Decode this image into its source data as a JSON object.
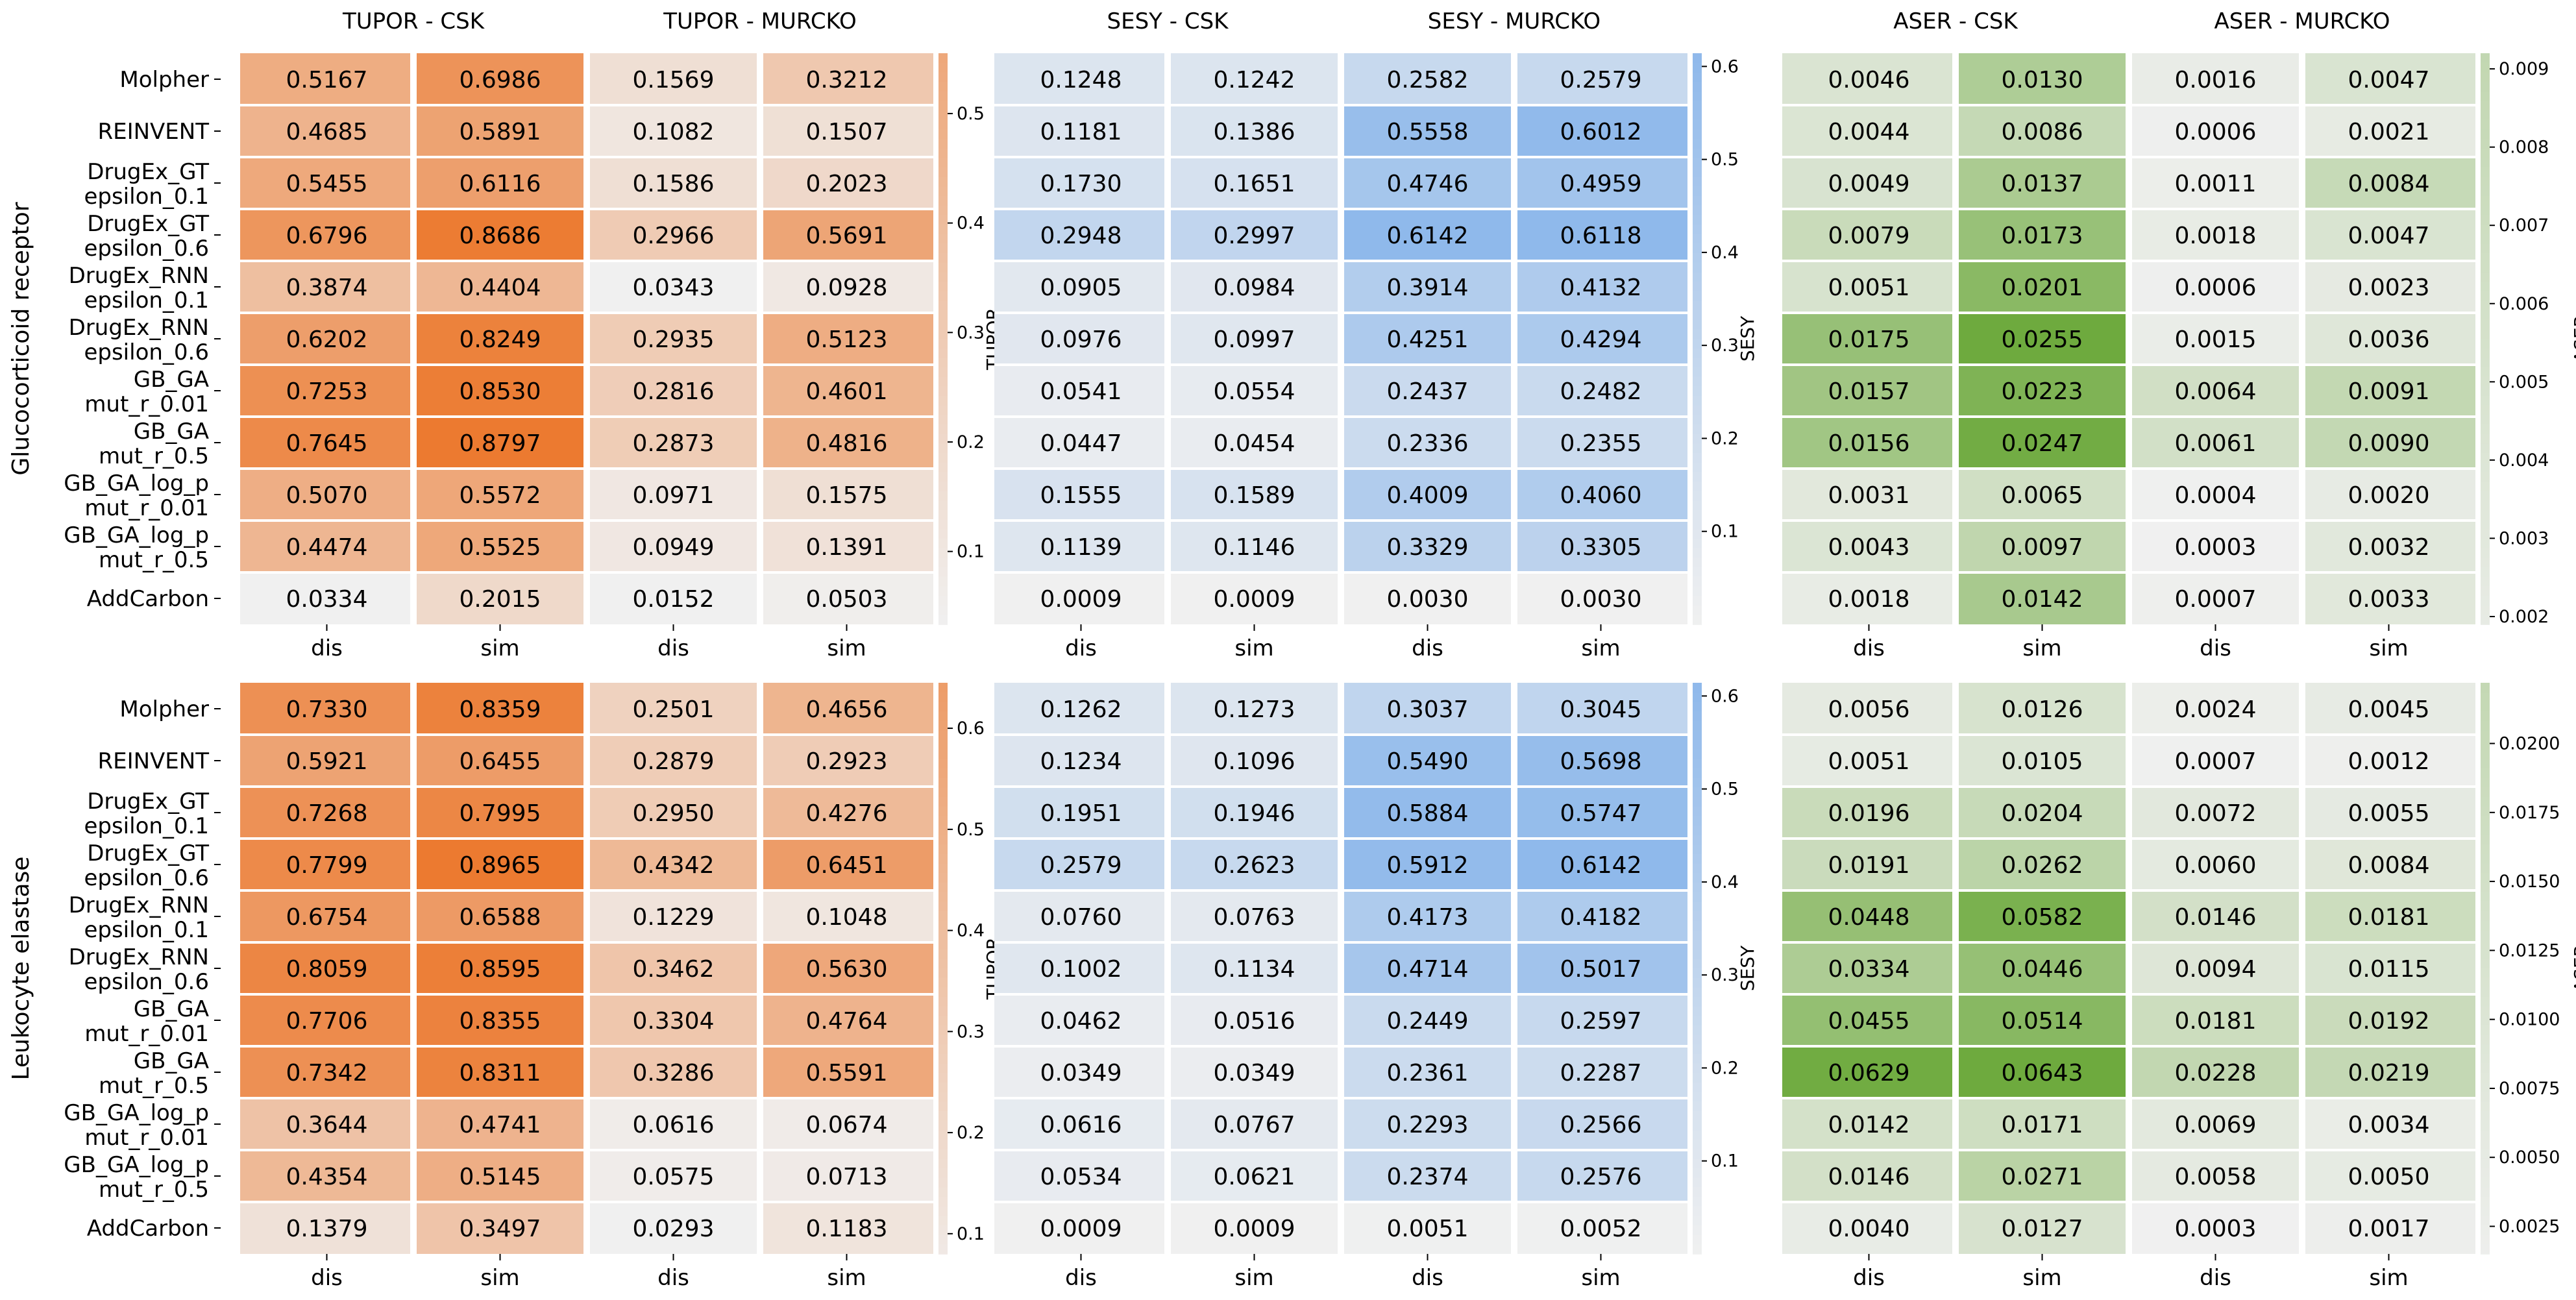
{
  "chart_data": {
    "type": "heatmap",
    "columns": [
      "dis",
      "sim",
      "dis",
      "sim"
    ],
    "rows": [
      "Molpher",
      "REINVENT",
      "DrugEx_GT epsilon_0.1",
      "DrugEx_GT epsilon_0.6",
      "DrugEx_RNN epsilon_0.1",
      "DrugEx_RNN epsilon_0.6",
      "GB_GA mut_r_0.01",
      "GB_GA mut_r_0.5",
      "GB_GA_log_p mut_r_0.01",
      "GB_GA_log_p mut_r_0.5",
      "AddCarbon"
    ],
    "row_labels": [
      [
        "Molpher"
      ],
      [
        "REINVENT"
      ],
      [
        "DrugEx_GT",
        "epsilon_0.1"
      ],
      [
        "DrugEx_GT",
        "epsilon_0.6"
      ],
      [
        "DrugEx_RNN",
        "epsilon_0.1"
      ],
      [
        "DrugEx_RNN",
        "epsilon_0.6"
      ],
      [
        "GB_GA",
        "mut_r_0.01"
      ],
      [
        "GB_GA",
        "mut_r_0.5"
      ],
      [
        "GB_GA_log_p",
        "mut_r_0.01"
      ],
      [
        "GB_GA_log_p",
        "mut_r_0.5"
      ],
      [
        "AddCarbon"
      ]
    ],
    "panels": [
      {
        "target": "Glucocorticoid receptor",
        "groups": [
          {
            "metric": "TUPOR",
            "colorbar_label": "TUPOR",
            "color": "#ec7a30",
            "titles": [
              "TUPOR - CSK",
              "TUPOR - MURCKO"
            ],
            "vmin": 0.0334,
            "vmax": 0.8797,
            "colorbar_range": [
              0.0334,
              0.5551
            ],
            "colorbar_ticks": [
              0.1,
              0.2,
              0.3,
              0.4,
              0.5
            ],
            "values": [
              [
                0.5167,
                0.6986,
                0.1569,
                0.3212
              ],
              [
                0.4685,
                0.5891,
                0.1082,
                0.1507
              ],
              [
                0.5455,
                0.6116,
                0.1586,
                0.2023
              ],
              [
                0.6796,
                0.8686,
                0.2966,
                0.5691
              ],
              [
                0.3874,
                0.4404,
                0.0343,
                0.0928
              ],
              [
                0.6202,
                0.8249,
                0.2935,
                0.5123
              ],
              [
                0.7253,
                0.853,
                0.2816,
                0.4601
              ],
              [
                0.7645,
                0.8797,
                0.2873,
                0.4816
              ],
              [
                0.507,
                0.5572,
                0.0971,
                0.1575
              ],
              [
                0.4474,
                0.5525,
                0.0949,
                0.1391
              ],
              [
                0.0334,
                0.2015,
                0.0152,
                0.0503
              ]
            ]
          },
          {
            "metric": "SESY",
            "colorbar_label": "SESY",
            "color": "#8fb9eb",
            "titles": [
              "SESY - CSK",
              "SESY - MURCKO"
            ],
            "vmin": 0.0009,
            "vmax": 0.6142,
            "colorbar_range": [
              0.0,
              0.6142
            ],
            "colorbar_ticks": [
              0.1,
              0.2,
              0.3,
              0.4,
              0.5,
              0.6
            ],
            "values": [
              [
                0.1248,
                0.1242,
                0.2582,
                0.2579
              ],
              [
                0.1181,
                0.1386,
                0.5558,
                0.6012
              ],
              [
                0.173,
                0.1651,
                0.4746,
                0.4959
              ],
              [
                0.2948,
                0.2997,
                0.6142,
                0.6118
              ],
              [
                0.0905,
                0.0984,
                0.3914,
                0.4132
              ],
              [
                0.0976,
                0.0997,
                0.4251,
                0.4294
              ],
              [
                0.0541,
                0.0554,
                0.2437,
                0.2482
              ],
              [
                0.0447,
                0.0454,
                0.2336,
                0.2355
              ],
              [
                0.1555,
                0.1589,
                0.4009,
                0.406
              ],
              [
                0.1139,
                0.1146,
                0.3329,
                0.3305
              ],
              [
                0.0009,
                0.0009,
                0.003,
                0.003
              ]
            ]
          },
          {
            "metric": "ASER",
            "colorbar_label": "ASER",
            "color": "#6eaa3e",
            "titles": [
              "ASER - CSK",
              "ASER - MURCKO"
            ],
            "vmin": 0.0003,
            "vmax": 0.0255,
            "colorbar_range": [
              0.0019,
              0.0092
            ],
            "colorbar_ticks": [
              0.002,
              0.003,
              0.004,
              0.005,
              0.006,
              0.007,
              0.008,
              0.009
            ],
            "values": [
              [
                0.0046,
                0.013,
                0.0016,
                0.0047
              ],
              [
                0.0044,
                0.0086,
                0.0006,
                0.0021
              ],
              [
                0.0049,
                0.0137,
                0.0011,
                0.0084
              ],
              [
                0.0079,
                0.0173,
                0.0018,
                0.0047
              ],
              [
                0.0051,
                0.0201,
                0.0006,
                0.0023
              ],
              [
                0.0175,
                0.0255,
                0.0015,
                0.0036
              ],
              [
                0.0157,
                0.0223,
                0.0064,
                0.0091
              ],
              [
                0.0156,
                0.0247,
                0.0061,
                0.009
              ],
              [
                0.0031,
                0.0065,
                0.0004,
                0.002
              ],
              [
                0.0043,
                0.0097,
                0.0003,
                0.0032
              ],
              [
                0.0018,
                0.0142,
                0.0007,
                0.0033
              ]
            ]
          }
        ]
      },
      {
        "target": "Leukocyte elastase",
        "groups": [
          {
            "metric": "TUPOR",
            "colorbar_label": "TUPOR",
            "color": "#ec7a30",
            "titles": [
              "",
              ""
            ],
            "vmin": 0.0293,
            "vmax": 0.8965,
            "colorbar_range": [
              0.08,
              0.645
            ],
            "colorbar_ticks": [
              0.1,
              0.2,
              0.3,
              0.4,
              0.5,
              0.6
            ],
            "values": [
              [
                0.733,
                0.8359,
                0.2501,
                0.4656
              ],
              [
                0.5921,
                0.6455,
                0.2879,
                0.2923
              ],
              [
                0.7268,
                0.7995,
                0.295,
                0.4276
              ],
              [
                0.7799,
                0.8965,
                0.4342,
                0.6451
              ],
              [
                0.6754,
                0.6588,
                0.1229,
                0.1048
              ],
              [
                0.8059,
                0.8595,
                0.3462,
                0.563
              ],
              [
                0.7706,
                0.8355,
                0.3304,
                0.4764
              ],
              [
                0.7342,
                0.8311,
                0.3286,
                0.5591
              ],
              [
                0.3644,
                0.4741,
                0.0616,
                0.0674
              ],
              [
                0.4354,
                0.5145,
                0.0575,
                0.0713
              ],
              [
                0.1379,
                0.3497,
                0.0293,
                0.1183
              ]
            ]
          },
          {
            "metric": "SESY",
            "colorbar_label": "SESY",
            "color": "#8fb9eb",
            "titles": [
              "",
              ""
            ],
            "vmin": 0.0009,
            "vmax": 0.6142,
            "colorbar_range": [
              0.0,
              0.6142
            ],
            "colorbar_ticks": [
              0.1,
              0.2,
              0.3,
              0.4,
              0.5,
              0.6
            ],
            "values": [
              [
                0.1262,
                0.1273,
                0.3037,
                0.3045
              ],
              [
                0.1234,
                0.1096,
                0.549,
                0.5698
              ],
              [
                0.1951,
                0.1946,
                0.5884,
                0.5747
              ],
              [
                0.2579,
                0.2623,
                0.5912,
                0.6142
              ],
              [
                0.076,
                0.0763,
                0.4173,
                0.4182
              ],
              [
                0.1002,
                0.1134,
                0.4714,
                0.5017
              ],
              [
                0.0462,
                0.0516,
                0.2449,
                0.2597
              ],
              [
                0.0349,
                0.0349,
                0.2361,
                0.2287
              ],
              [
                0.0616,
                0.0767,
                0.2293,
                0.2566
              ],
              [
                0.0534,
                0.0621,
                0.2374,
                0.2576
              ],
              [
                0.0009,
                0.0009,
                0.0051,
                0.0052
              ]
            ]
          },
          {
            "metric": "ASER",
            "colorbar_label": "ASER",
            "color": "#6eaa3e",
            "titles": [
              "",
              ""
            ],
            "vmin": 0.0003,
            "vmax": 0.0643,
            "colorbar_range": [
              0.0015,
              0.0222
            ],
            "colorbar_ticks": [
              0.0025,
              0.005,
              0.0075,
              0.01,
              0.0125,
              0.015,
              0.0175,
              0.02
            ],
            "colorbar_tick_labels": [
              "0.0025",
              "0.0050",
              "0.0075",
              "0.0100",
              "0.0125",
              "0.0150",
              "0.0175",
              "0.0200"
            ],
            "values": [
              [
                0.0056,
                0.0126,
                0.0024,
                0.0045
              ],
              [
                0.0051,
                0.0105,
                0.0007,
                0.0012
              ],
              [
                0.0196,
                0.0204,
                0.0072,
                0.0055
              ],
              [
                0.0191,
                0.0262,
                0.006,
                0.0084
              ],
              [
                0.0448,
                0.0582,
                0.0146,
                0.0181
              ],
              [
                0.0334,
                0.0446,
                0.0094,
                0.0115
              ],
              [
                0.0455,
                0.0514,
                0.0181,
                0.0192
              ],
              [
                0.0629,
                0.0643,
                0.0228,
                0.0219
              ],
              [
                0.0142,
                0.0171,
                0.0069,
                0.0034
              ],
              [
                0.0146,
                0.0271,
                0.0058,
                0.005
              ],
              [
                0.004,
                0.0127,
                0.0003,
                0.0017
              ]
            ]
          }
        ]
      }
    ]
  }
}
